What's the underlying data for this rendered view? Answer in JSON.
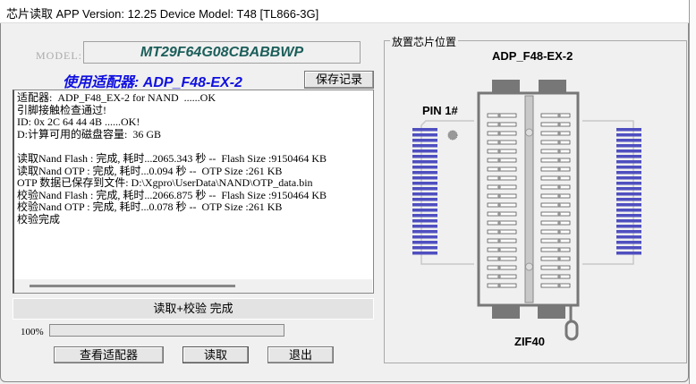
{
  "window": {
    "title": "芯片读取    APP Version: 12.25 Device Model: T48 [TL866-3G]"
  },
  "model": {
    "label": "MODEL:",
    "value": "MT29F64G08CBABBWP"
  },
  "adapter_line": "使用适配器: ADP_F48-EX-2",
  "save_button": "保存记录",
  "log": [
    "适配器:  ADP_F48_EX-2 for NAND  ......OK",
    "引脚接触检查通过!",
    "ID: 0x 2C 64 44 4B ......OK!",
    "D:计算可用的磁盘容量:  36 GB",
    "",
    "读取Nand Flash : 完成, 耗时...2065.343 秒 --  Flash Size :9150464 KB",
    "读取Nand OTP : 完成, 耗时...0.094 秒 --  OTP Size :261 KB",
    "OTP 数据已保存到文件: D:\\Xgpro\\UserData\\NAND\\OTP_data.bin",
    "校验Nand Flash : 完成, 耗时...2066.875 秒 --  Flash Size :9150464 KB",
    "校验Nand OTP : 完成, 耗时...0.078 秒 --  OTP Size :261 KB",
    "校验完成"
  ],
  "status": "读取+校验 完成",
  "progress": {
    "label": "100%",
    "percent": 100
  },
  "buttons": {
    "view_adapter": "查看适配器",
    "read": "读取",
    "exit": "退出"
  },
  "placement": {
    "group_title": "放置芯片位置",
    "adapter_name": "ADP_F48-EX-2",
    "pin1_label": "PIN 1#",
    "socket_label": "ZIF40",
    "chip_pins_per_side": 24,
    "socket_rows_per_side": 20
  },
  "colors": {
    "model": "#1b5e5a",
    "adapter": "#1010e0",
    "pins": "#4f4fc0",
    "socket": "#777777"
  }
}
